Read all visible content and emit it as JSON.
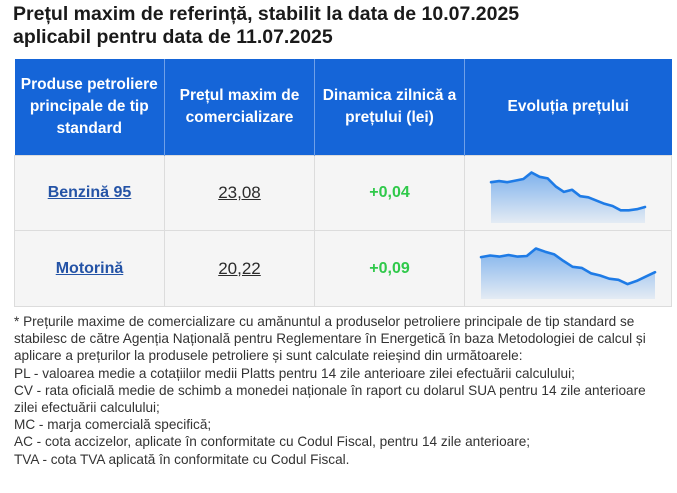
{
  "title": {
    "line1": "Prețul maxim de referință, stabilit la data de 10.07.2025",
    "line2": "aplicabil pentru data de 11.07.2025"
  },
  "table": {
    "headers": [
      "Produse petroliere principale de tip standard",
      "Prețul maxim de comercializare",
      "Dinamica zilnică a prețului (lei)",
      "Evoluția prețului"
    ],
    "rows": [
      {
        "product": "Benzină 95",
        "price": "23,08",
        "delta": "+0,04",
        "trend": [
          0.7,
          0.72,
          0.7,
          0.73,
          0.76,
          0.88,
          0.8,
          0.77,
          0.62,
          0.52,
          0.56,
          0.44,
          0.42,
          0.36,
          0.3,
          0.26,
          0.18,
          0.18,
          0.2,
          0.24
        ]
      },
      {
        "product": "Motorină",
        "price": "20,22",
        "delta": "+0,09",
        "trend": [
          0.72,
          0.75,
          0.73,
          0.76,
          0.73,
          0.74,
          0.88,
          0.82,
          0.77,
          0.65,
          0.54,
          0.52,
          0.42,
          0.38,
          0.32,
          0.3,
          0.22,
          0.28,
          0.36,
          0.44
        ]
      }
    ],
    "trend_color": "#1e7be6"
  },
  "notes": [
    "* Prețurile maxime de comercializare cu amănuntul a produselor petroliere principale de tip standard se stabilesc de către Agenția Națională pentru Reglementare în Energetică în baza Metodologiei de calcul și aplicare a prețurilor la produsele petroliere și sunt calculate reieșind din următoarele:",
    "PL - valoarea medie a cotațiilor medii Platts pentru 14 zile anterioare zilei efectuării calculului;",
    "CV - rata oficială medie de schimb a monedei naționale în raport cu dolarul SUA pentru 14 zile anterioare zilei efectuării calculului;",
    "MC - marja comercială specifică;",
    "AC - cota accizelor, aplicate în conformitate cu Codul Fiscal, pentru 14 zile anterioare;",
    "TVA - cota TVA aplicată în conformitate cu Codul Fiscal."
  ]
}
